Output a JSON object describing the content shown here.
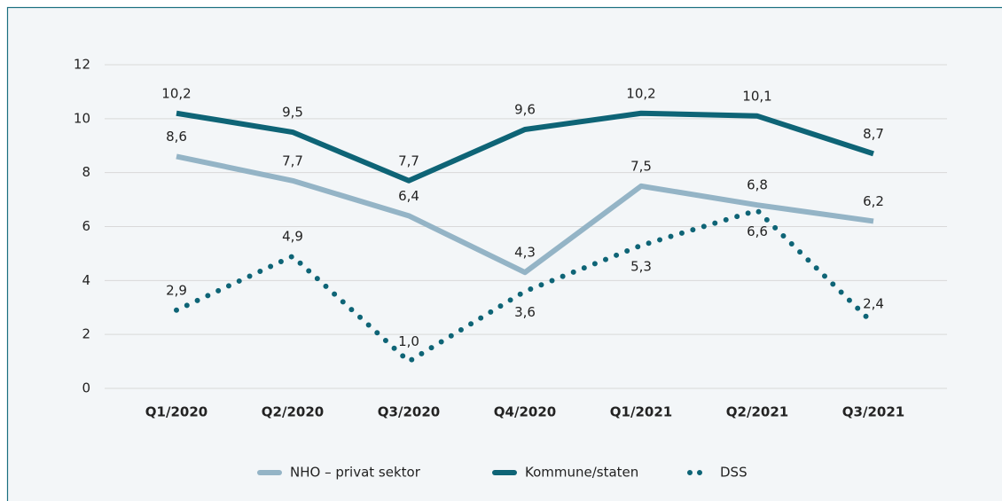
{
  "chart_data": {
    "type": "line",
    "categories": [
      "Q1/2020",
      "Q2/2020",
      "Q3/2020",
      "Q4/2020",
      "Q1/2021",
      "Q2/2021",
      "Q3/2021"
    ],
    "series": [
      {
        "name": "NHO – privat sektor",
        "color": "#94b4c6",
        "style": "solid",
        "values": [
          8.6,
          7.7,
          6.4,
          4.3,
          7.5,
          6.8,
          6.2
        ],
        "value_labels": [
          "8,6",
          "7,7",
          "6,4",
          "4,3",
          "7,5",
          "6,8",
          "6,2"
        ]
      },
      {
        "name": "Kommune/staten",
        "color": "#0e6476",
        "style": "solid",
        "values": [
          10.2,
          9.5,
          7.7,
          9.6,
          10.2,
          10.1,
          8.7
        ],
        "value_labels": [
          "10,2",
          "9,5",
          "7,7",
          "9,6",
          "10,2",
          "10,1",
          "8,7"
        ]
      },
      {
        "name": "DSS",
        "color": "#0e6476",
        "style": "dotted",
        "values": [
          2.9,
          4.9,
          1.0,
          3.6,
          5.3,
          6.6,
          2.4
        ],
        "value_labels": [
          "2,9",
          "4,9",
          "1,0",
          "3,6",
          "5,3",
          "6,6",
          "2,4"
        ]
      }
    ],
    "ylim": [
      0,
      12
    ],
    "yticks": [
      0,
      2,
      4,
      6,
      8,
      10,
      12
    ],
    "grid": true,
    "legend": "bottom"
  }
}
